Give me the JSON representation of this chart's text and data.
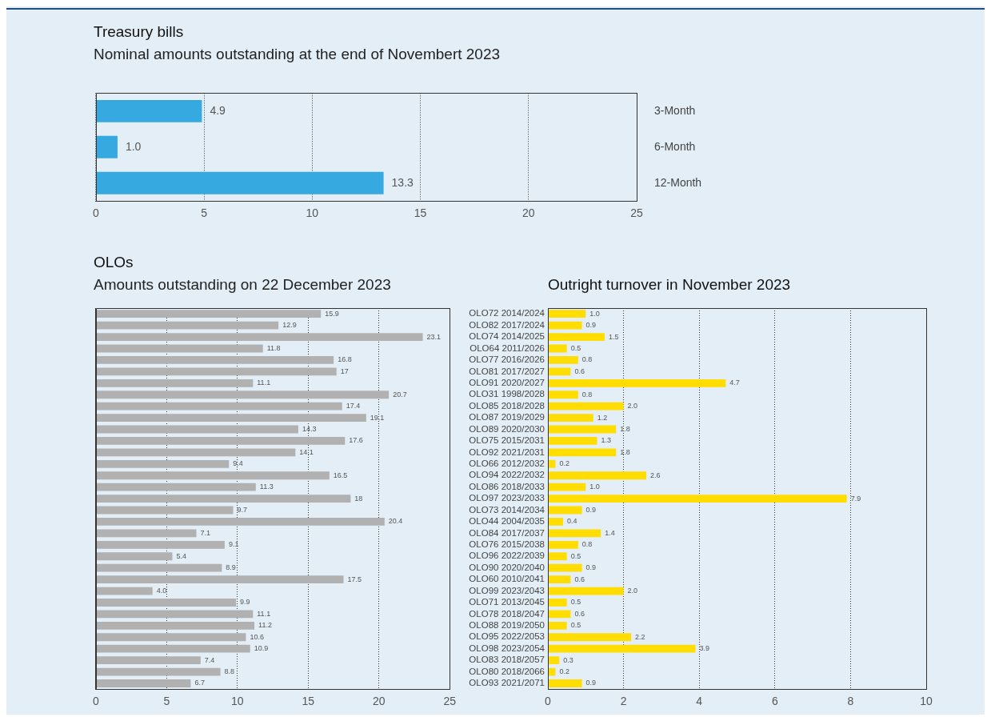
{
  "chart_data": [
    {
      "type": "bar",
      "title": "Treasury bills",
      "subtitle": "Nominal amounts outstanding at the end of Novembert 2023",
      "orientation": "horizontal",
      "categories": [
        "3-Month",
        "6-Month",
        "12-Month"
      ],
      "values": [
        4.9,
        1.0,
        13.3
      ],
      "value_labels": [
        "4.9",
        "1.0",
        "13.3"
      ],
      "color": "#36a9e1",
      "xlim": [
        0,
        25
      ],
      "xticks": [
        0,
        5,
        10,
        15,
        20,
        25
      ],
      "grid": "x"
    },
    {
      "type": "bar",
      "title": "OLOs",
      "subtitle": "Amounts outstanding on 22 December 2023",
      "orientation": "horizontal",
      "categories": [
        null,
        null,
        null,
        null,
        null,
        null,
        null,
        null,
        null,
        null,
        null,
        null,
        null,
        null,
        null,
        null,
        null,
        null,
        null,
        null,
        null,
        null,
        null,
        null,
        null,
        null,
        null,
        null,
        null,
        null,
        null,
        null,
        null
      ],
      "values": [
        15.9,
        12.9,
        23.1,
        11.8,
        16.8,
        17,
        11.1,
        20.7,
        17.4,
        19.1,
        14.3,
        17.6,
        14.1,
        9.4,
        16.5,
        11.3,
        18,
        9.7,
        20.4,
        7.1,
        9.1,
        5.4,
        8.9,
        17.5,
        4.0,
        9.9,
        11.1,
        11.2,
        10.6,
        10.9,
        7.4,
        8.8,
        6.7
      ],
      "value_labels": [
        "15.9",
        "12.9",
        "23.1",
        "11.8",
        "16.8",
        "17",
        "11.1",
        "20.7",
        "17.4",
        "19.1",
        "14.3",
        "17.6",
        "14.1",
        "9.4",
        "16.5",
        "11.3",
        "18",
        "9.7",
        "20.4",
        "7.1",
        "9.1",
        "5.4",
        "8.9",
        "17.5",
        "4.0",
        "9.9",
        "11.1",
        "11.2",
        "10.6",
        "10.9",
        "7.4",
        "8.8",
        "6.7"
      ],
      "color": "#b1b1b1",
      "xlim": [
        0,
        25
      ],
      "xticks": [
        0,
        5,
        10,
        15,
        20,
        25
      ],
      "grid": "x"
    },
    {
      "type": "bar",
      "title": "Outright turnover in November 2023",
      "orientation": "horizontal",
      "categories": [
        "OLO72 2014/2024",
        "OLO82 2017/2024",
        "OLO74 2014/2025",
        "OLO64 2011/2026",
        "OLO77 2016/2026",
        "OLO81 2017/2027",
        "OLO91 2020/2027",
        "OLO31 1998/2028",
        "OLO85 2018/2028",
        "OLO87 2019/2029",
        "OLO89 2020/2030",
        "OLO75 2015/2031",
        "OLO92 2021/2031",
        "OLO66 2012/2032",
        "OLO94 2022/2032",
        "OLO86 2018/2033",
        "OLO97 2023/2033",
        "OLO73 2014/2034",
        "OLO44 2004/2035",
        "OLO84 2017/2037",
        "OLO76 2015/2038",
        "OLO96 2022/2039",
        "OLO90 2020/2040",
        "OLO60 2010/2041",
        "OLO99 2023/2043",
        "OLO71 2013/2045",
        "OLO78 2018/2047",
        "OLO88 2019/2050",
        "OLO95 2022/2053",
        "OLO98 2023/2054",
        "OLO83 2018/2057",
        "OLO80 2018/2066",
        "OLO93 2021/2071"
      ],
      "values": [
        1.0,
        0.9,
        1.5,
        0.5,
        0.8,
        0.6,
        4.7,
        0.8,
        2.0,
        1.2,
        1.8,
        1.3,
        1.8,
        0.2,
        2.6,
        1.0,
        7.9,
        0.9,
        0.4,
        1.4,
        0.8,
        0.5,
        0.9,
        0.6,
        2.0,
        0.5,
        0.6,
        0.5,
        2.2,
        3.9,
        0.3,
        0.2,
        0.9
      ],
      "value_labels": [
        "1.0",
        "0.9",
        "1.5",
        "0.5",
        "0.8",
        "0.6",
        "4.7",
        "0.8",
        "2.0",
        "1.2",
        "1.8",
        "1.3",
        "1.8",
        "0.2",
        "2.6",
        "1.0",
        "7.9",
        "0.9",
        "0.4",
        "1.4",
        "0.8",
        "0.5",
        "0.9",
        "0.6",
        "2.0",
        "0.5",
        "0.6",
        "0.5",
        "2.2",
        "3.9",
        "0.3",
        "0.2",
        "0.9"
      ],
      "color": "#ffdd00",
      "xlim": [
        0,
        10
      ],
      "xticks": [
        0,
        2,
        4,
        6,
        8,
        10
      ],
      "grid": "x"
    }
  ]
}
